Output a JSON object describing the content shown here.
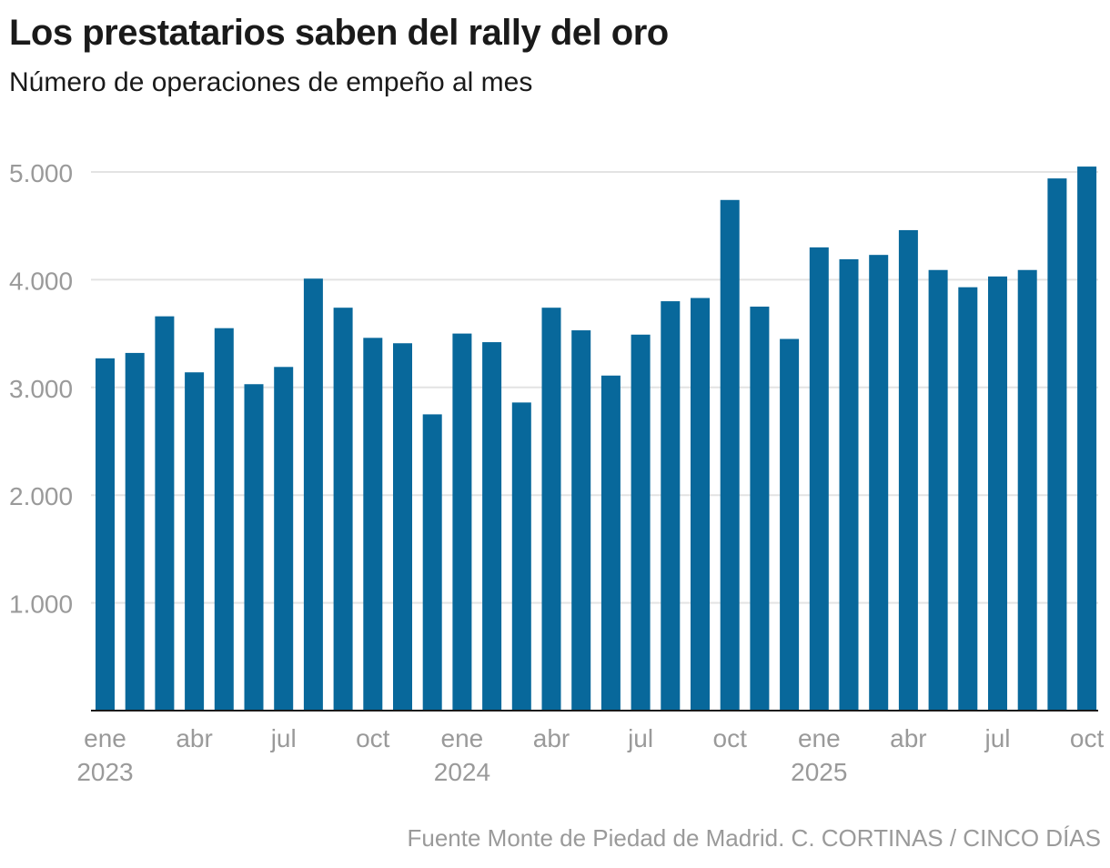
{
  "header": {
    "title": "Los prestatarios saben del rally del oro",
    "subtitle": "Número de operaciones de empeño al mes"
  },
  "footer": {
    "source": "Fuente Monte de Piedad de Madrid. C. CORTINAS / CINCO DÍAS"
  },
  "colors": {
    "bar": "#08689b",
    "grid": "#e3e3e3",
    "axis": "#1a1a1a",
    "tick_text": "#9a9a9a"
  },
  "chart_data": {
    "type": "bar",
    "title": "Los prestatarios saben del rally del oro",
    "subtitle": "Número de operaciones de empeño al mes",
    "xlabel": "",
    "ylabel": "",
    "ylim": [
      0,
      5000
    ],
    "grid": true,
    "yticks": [
      1000,
      2000,
      3000,
      4000,
      5000
    ],
    "ytick_labels": [
      "1.000",
      "2.000",
      "3.000",
      "4.000",
      "5.000"
    ],
    "categories": [
      "ene 2023",
      "feb 2023",
      "mar 2023",
      "abr 2023",
      "may 2023",
      "jun 2023",
      "jul 2023",
      "ago 2023",
      "sep 2023",
      "oct 2023",
      "nov 2023",
      "dic 2023",
      "ene 2024",
      "feb 2024",
      "mar 2024",
      "abr 2024",
      "may 2024",
      "jun 2024",
      "jul 2024",
      "ago 2024",
      "sep 2024",
      "oct 2024",
      "nov 2024",
      "dic 2024",
      "ene 2025",
      "feb 2025",
      "mar 2025",
      "abr 2025",
      "may 2025",
      "jun 2025",
      "jul 2025",
      "ago 2025",
      "sep 2025",
      "oct 2025"
    ],
    "values": [
      3270,
      3320,
      3660,
      3140,
      3550,
      3030,
      3190,
      4010,
      3740,
      3460,
      3410,
      2750,
      3500,
      3420,
      2860,
      3740,
      3530,
      3110,
      3490,
      3800,
      3830,
      4740,
      3750,
      3450,
      4300,
      4190,
      4230,
      4460,
      4090,
      3930,
      4030,
      4090,
      4940,
      5050
    ],
    "xticks": [
      {
        "index": 0,
        "label": "ene",
        "year": "2023"
      },
      {
        "index": 3,
        "label": "abr",
        "year": ""
      },
      {
        "index": 6,
        "label": "jul",
        "year": ""
      },
      {
        "index": 9,
        "label": "oct",
        "year": ""
      },
      {
        "index": 12,
        "label": "ene",
        "year": "2024"
      },
      {
        "index": 15,
        "label": "abr",
        "year": ""
      },
      {
        "index": 18,
        "label": "jul",
        "year": ""
      },
      {
        "index": 21,
        "label": "oct",
        "year": ""
      },
      {
        "index": 24,
        "label": "ene",
        "year": "2025"
      },
      {
        "index": 27,
        "label": "abr",
        "year": ""
      },
      {
        "index": 30,
        "label": "jul",
        "year": ""
      },
      {
        "index": 33,
        "label": "oct",
        "year": ""
      }
    ]
  }
}
